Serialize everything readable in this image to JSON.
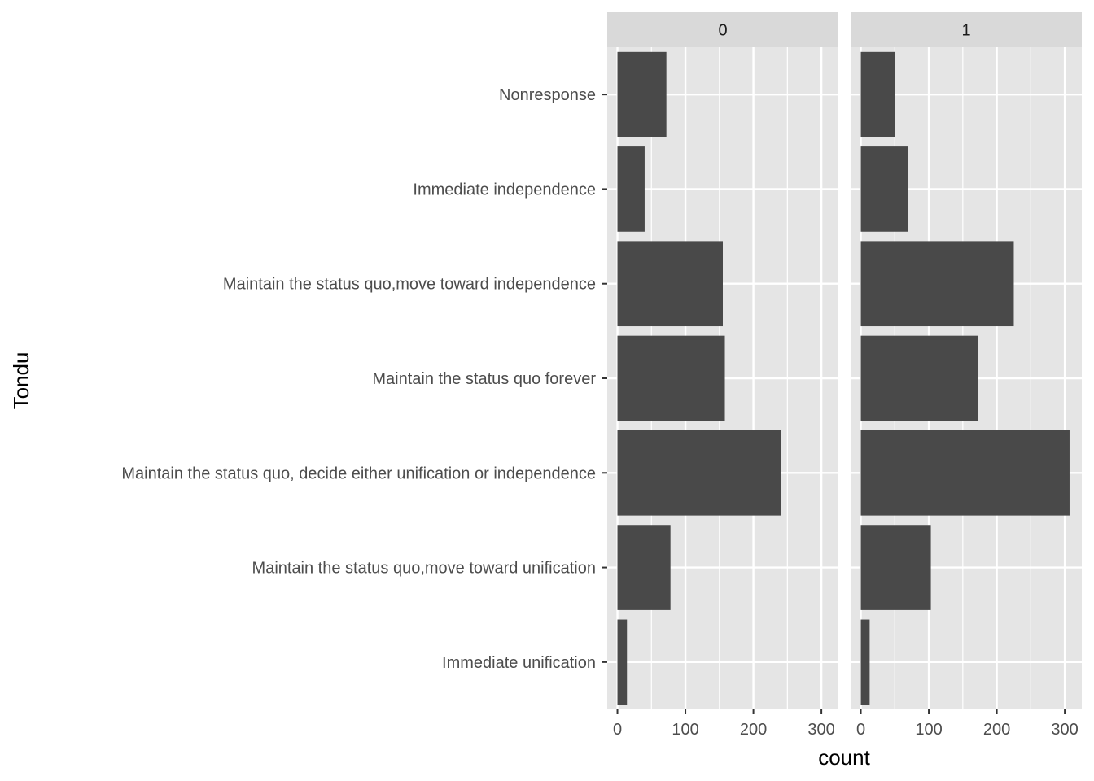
{
  "chart_data": {
    "type": "bar",
    "orientation": "horizontal",
    "facet_variable_values": [
      "0",
      "1"
    ],
    "categories": [
      "Nonresponse",
      "Immediate independence",
      "Maintain the status quo,move toward independence",
      "Maintain the status quo forever",
      "Maintain the status quo, decide either unification or independence",
      "Maintain the status quo,move toward unification",
      "Immediate unification"
    ],
    "panels": [
      {
        "label": "0",
        "values": [
          72,
          40,
          155,
          158,
          240,
          78,
          14
        ]
      },
      {
        "label": "1",
        "values": [
          50,
          70,
          225,
          172,
          307,
          103,
          13
        ]
      }
    ],
    "xlabel": "count",
    "ylabel": "Tondu",
    "xlim": [
      -15,
      325
    ],
    "x_ticks": [
      0,
      100,
      200,
      300
    ],
    "x_minor_ticks": [
      50,
      150,
      250
    ],
    "grid": true,
    "colors": {
      "bar": "#494949",
      "panel_background": "#e5e5e5",
      "grid": "#ffffff",
      "strip_background": "#d9d9d9",
      "tick_text": "#4d4d4d"
    }
  }
}
